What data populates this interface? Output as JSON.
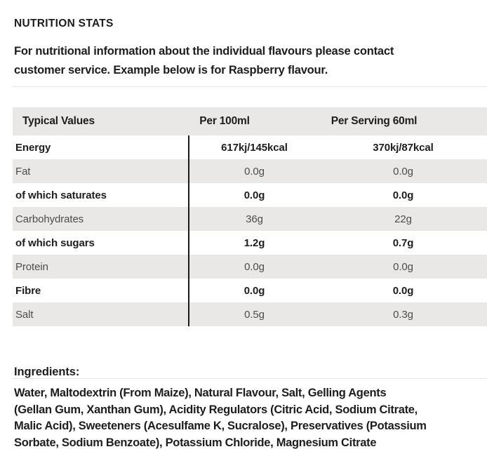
{
  "section": {
    "title": "NUTRITION STATS"
  },
  "intro": {
    "lines": [
      "For nutritional information about the individual flavours please contact",
      "customer service. Example below is for Raspberry flavour."
    ]
  },
  "table": {
    "columns": [
      "Typical Values",
      "Per 100ml",
      "Per Serving 60ml"
    ],
    "rows": [
      {
        "label": "Energy",
        "per_100ml": "617kj/145kcal",
        "per_serving": "370kj/87kcal"
      },
      {
        "label": "Fat",
        "per_100ml": "0.0g",
        "per_serving": "0.0g"
      },
      {
        "label": "of which saturates",
        "per_100ml": "0.0g",
        "per_serving": "0.0g"
      },
      {
        "label": "Carbohydrates",
        "per_100ml": "36g",
        "per_serving": "22g"
      },
      {
        "label": "of which sugars",
        "per_100ml": "1.2g",
        "per_serving": "0.7g"
      },
      {
        "label": "Protein",
        "per_100ml": "0.0g",
        "per_serving": "0.0g"
      },
      {
        "label": "Fibre",
        "per_100ml": "0.0g",
        "per_serving": "0.0g"
      },
      {
        "label": "Salt",
        "per_100ml": "0.5g",
        "per_serving": "0.3g"
      }
    ]
  },
  "ingredients": {
    "title": "Ingredients:",
    "lines": [
      "Water, Maltodextrin (From Maize), Natural Flavour, Salt, Gelling Agents",
      "(Gellan Gum, Xanthan Gum), Acidity Regulators (Citric Acid, Sodium Citrate,",
      "Malic Acid), Sweeteners (Acesulfame K, Sucralose), Preservatives (Potassium",
      "Sorbate, Sodium Benzoate), Potassium Chloride, Magnesium Citrate"
    ]
  },
  "colors": {
    "row_shade": "#e9e8e6",
    "divider": "#e4e4e4",
    "table_rule": "#1a1a1a",
    "text_primary": "#1d1d1d",
    "text_secondary": "#4c4c4c"
  }
}
